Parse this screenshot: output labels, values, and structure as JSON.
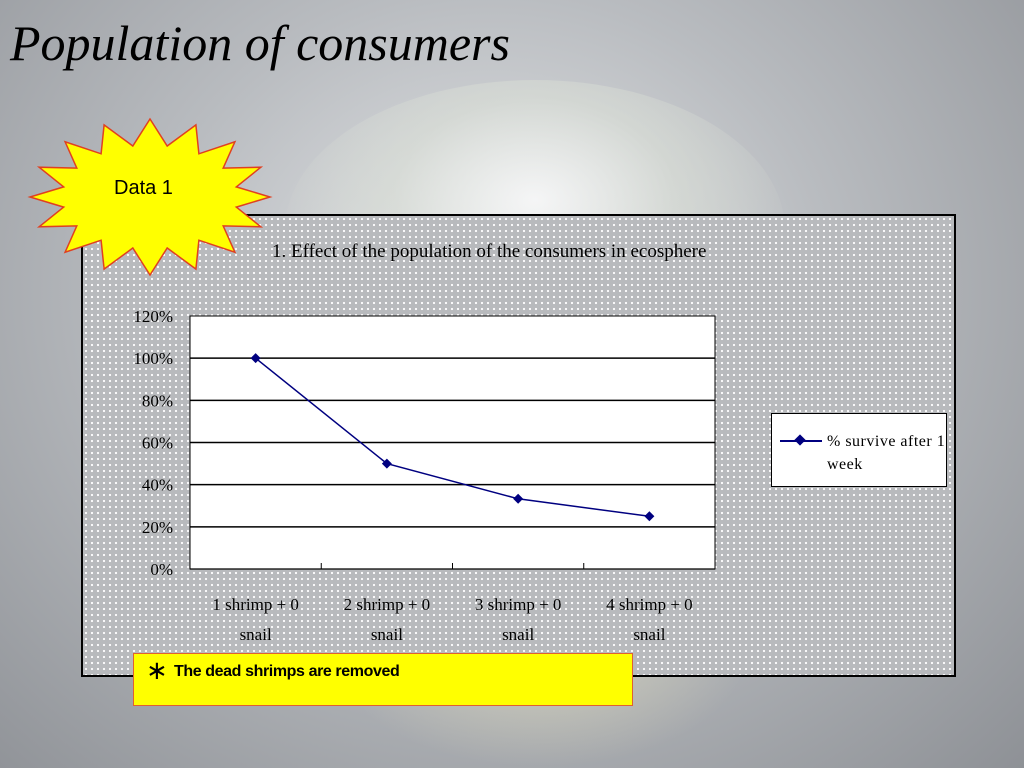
{
  "slide": {
    "title": "Population of consumers"
  },
  "starburst": {
    "label": "Data 1",
    "fill": "#ffff00",
    "stroke": "#e04020"
  },
  "note": {
    "asterisk": "∗",
    "text": "The dead shrimps are removed",
    "fill": "#ffff00"
  },
  "chart_data": {
    "type": "line",
    "title": "1. Effect of the population of the consumers in ecosphere",
    "categories": [
      [
        "1 shrimp + 0",
        "snail"
      ],
      [
        "2 shrimp + 0",
        "snail"
      ],
      [
        "3 shrimp + 0",
        "snail"
      ],
      [
        "4 shrimp + 0",
        "snail"
      ]
    ],
    "series": [
      {
        "name": "% survive after 1 week",
        "values": [
          100,
          50,
          33.3,
          25
        ],
        "color": "#000080"
      }
    ],
    "ylim": [
      0,
      120
    ],
    "yticks": [
      "0%",
      "20%",
      "40%",
      "60%",
      "80%",
      "100%",
      "120%"
    ],
    "grid": true,
    "legend": "right",
    "xlabel": "",
    "ylabel": ""
  }
}
